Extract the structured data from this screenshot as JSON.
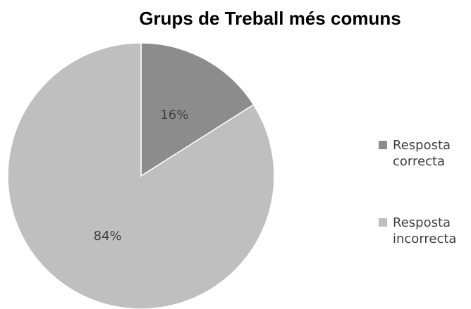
{
  "chart_data": {
    "type": "pie",
    "title": "Grups de Treball més comuns",
    "categories": [
      "Resposta correcta",
      "Resposta incorrecta"
    ],
    "values": [
      16,
      84
    ],
    "value_labels": [
      "16%",
      "84%"
    ],
    "colors": [
      "#8c8c8c",
      "#bfbfbf"
    ]
  }
}
